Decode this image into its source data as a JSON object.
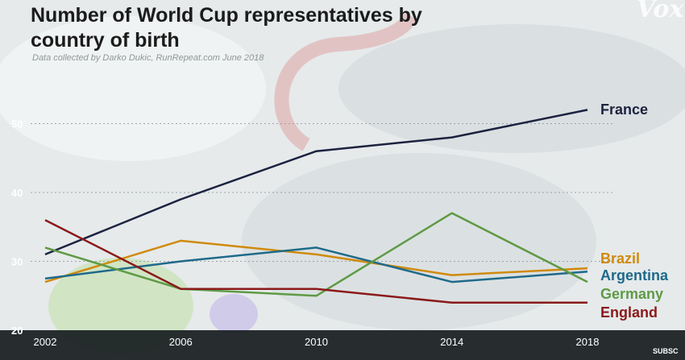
{
  "title": "Number of World Cup representatives by country of birth",
  "source": "Data collected by Darko Dukic, RunRepeat.com June 2018",
  "brand": "Vox",
  "corner_text": "SUBSC",
  "chart_data": {
    "type": "line",
    "title": "Number of World Cup representatives by country of birth",
    "x": [
      2002,
      2006,
      2010,
      2014,
      2018
    ],
    "y_ticks": [
      20,
      30,
      40,
      50
    ],
    "ylim": [
      20,
      55
    ],
    "grid": "horizontal dotted",
    "legend": "end labels at right",
    "series": [
      {
        "name": "France",
        "color": "#1c2340",
        "values": [
          31,
          39,
          46,
          48,
          52
        ]
      },
      {
        "name": "Brazil",
        "color": "#d08a0c",
        "values": [
          27,
          33,
          31,
          28,
          29
        ]
      },
      {
        "name": "Argentina",
        "color": "#1f6a8a",
        "values": [
          27.5,
          30,
          32,
          27,
          28.5
        ]
      },
      {
        "name": "Germany",
        "color": "#5e9a45",
        "values": [
          32,
          26,
          25,
          37,
          27
        ]
      },
      {
        "name": "England",
        "color": "#8b1a1a",
        "values": [
          36,
          26,
          26,
          24,
          24
        ]
      }
    ]
  }
}
